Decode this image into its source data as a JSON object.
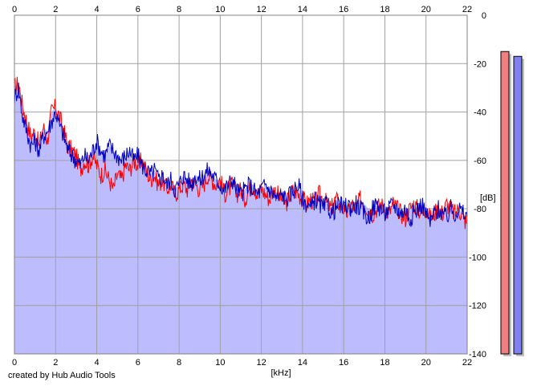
{
  "chart_data": {
    "type": "line",
    "title": "",
    "xlabel": "[kHz]",
    "ylabel": "[dB]",
    "xlim": [
      0,
      22
    ],
    "ylim": [
      -140,
      0
    ],
    "x_ticks": [
      "0",
      "2",
      "4",
      "6",
      "8",
      "10",
      "12",
      "14",
      "16",
      "18",
      "20",
      "22"
    ],
    "y_ticks": [
      "0",
      "-20",
      "-40",
      "-60",
      "-80",
      "-100",
      "-120",
      "-140"
    ],
    "grid": true,
    "fill_color": "#bcbcff",
    "series": [
      {
        "color": "#ff0000",
        "x": [
          0,
          0.2,
          0.4,
          0.6,
          0.8,
          1.0,
          1.2,
          1.4,
          1.6,
          1.8,
          2.0,
          2.2,
          2.4,
          2.6,
          2.8,
          3.0,
          3.2,
          3.4,
          3.6,
          3.8,
          4.0,
          4.2,
          4.4,
          4.6,
          4.8,
          5.0,
          5.2,
          5.4,
          5.6,
          5.8,
          6.0,
          6.2,
          6.4,
          6.6,
          6.8,
          7.0,
          7.2,
          7.4,
          7.6,
          7.8,
          8.0,
          8.2,
          8.4,
          8.6,
          8.8,
          9.0,
          9.2,
          9.4,
          9.6,
          9.8,
          10.0,
          10.2,
          10.4,
          10.6,
          10.8,
          11.0,
          11.2,
          11.4,
          11.6,
          11.8,
          12.0,
          12.2,
          12.4,
          12.6,
          12.8,
          13.0,
          13.2,
          13.4,
          13.6,
          13.8,
          14.0,
          14.2,
          14.4,
          14.6,
          14.8,
          15.0,
          15.2,
          15.4,
          15.6,
          15.8,
          16.0,
          16.2,
          16.4,
          16.6,
          16.8,
          17.0,
          17.2,
          17.4,
          17.6,
          17.8,
          18.0,
          18.2,
          18.4,
          18.6,
          18.8,
          19.0,
          19.2,
          19.4,
          19.6,
          19.8,
          20.0,
          20.2,
          20.4,
          20.6,
          20.8,
          21.0,
          21.2,
          21.4,
          21.6,
          21.8,
          22.0
        ],
        "y": [
          -30,
          -28,
          -38,
          -44,
          -50,
          -48,
          -54,
          -46,
          -52,
          -40,
          -38,
          -42,
          -48,
          -54,
          -56,
          -58,
          -64,
          -60,
          -62,
          -58,
          -62,
          -66,
          -64,
          -68,
          -72,
          -66,
          -68,
          -62,
          -64,
          -60,
          -62,
          -60,
          -64,
          -68,
          -66,
          -70,
          -68,
          -72,
          -70,
          -74,
          -72,
          -70,
          -72,
          -68,
          -70,
          -72,
          -70,
          -66,
          -68,
          -70,
          -68,
          -74,
          -72,
          -70,
          -74,
          -72,
          -76,
          -72,
          -70,
          -74,
          -72,
          -74,
          -76,
          -72,
          -74,
          -76,
          -78,
          -74,
          -72,
          -74,
          -76,
          -78,
          -76,
          -78,
          -74,
          -76,
          -78,
          -80,
          -76,
          -78,
          -80,
          -82,
          -78,
          -80,
          -76,
          -78,
          -80,
          -82,
          -80,
          -78,
          -80,
          -82,
          -78,
          -80,
          -82,
          -84,
          -80,
          -78,
          -80,
          -82,
          -80,
          -84,
          -82,
          -80,
          -82,
          -78,
          -80,
          -82,
          -80,
          -84,
          -86
        ]
      },
      {
        "color": "#0000c0",
        "x": [
          0,
          0.2,
          0.4,
          0.6,
          0.8,
          1.0,
          1.2,
          1.4,
          1.6,
          1.8,
          2.0,
          2.2,
          2.4,
          2.6,
          2.8,
          3.0,
          3.2,
          3.4,
          3.6,
          3.8,
          4.0,
          4.2,
          4.4,
          4.6,
          4.8,
          5.0,
          5.2,
          5.4,
          5.6,
          5.8,
          6.0,
          6.2,
          6.4,
          6.6,
          6.8,
          7.0,
          7.2,
          7.4,
          7.6,
          7.8,
          8.0,
          8.2,
          8.4,
          8.6,
          8.8,
          9.0,
          9.2,
          9.4,
          9.6,
          9.8,
          10.0,
          10.2,
          10.4,
          10.6,
          10.8,
          11.0,
          11.2,
          11.4,
          11.6,
          11.8,
          12.0,
          12.2,
          12.4,
          12.6,
          12.8,
          13.0,
          13.2,
          13.4,
          13.6,
          13.8,
          14.0,
          14.2,
          14.4,
          14.6,
          14.8,
          15.0,
          15.2,
          15.4,
          15.6,
          15.8,
          16.0,
          16.2,
          16.4,
          16.6,
          16.8,
          17.0,
          17.2,
          17.4,
          17.6,
          17.8,
          18.0,
          18.2,
          18.4,
          18.6,
          18.8,
          19.0,
          19.2,
          19.4,
          19.6,
          19.8,
          20.0,
          20.2,
          20.4,
          20.6,
          20.8,
          21.0,
          21.2,
          21.4,
          21.6,
          21.8,
          22.0
        ],
        "y": [
          -34,
          -30,
          -42,
          -48,
          -54,
          -52,
          -56,
          -50,
          -48,
          -44,
          -40,
          -46,
          -50,
          -56,
          -58,
          -60,
          -62,
          -58,
          -60,
          -56,
          -52,
          -56,
          -58,
          -54,
          -56,
          -58,
          -60,
          -58,
          -56,
          -60,
          -58,
          -62,
          -64,
          -66,
          -64,
          -68,
          -66,
          -70,
          -68,
          -72,
          -70,
          -66,
          -68,
          -70,
          -66,
          -68,
          -66,
          -64,
          -66,
          -68,
          -70,
          -72,
          -70,
          -68,
          -72,
          -74,
          -72,
          -70,
          -72,
          -74,
          -72,
          -70,
          -72,
          -74,
          -76,
          -74,
          -76,
          -74,
          -72,
          -70,
          -76,
          -78,
          -80,
          -76,
          -78,
          -80,
          -78,
          -82,
          -80,
          -78,
          -80,
          -78,
          -80,
          -78,
          -80,
          -82,
          -84,
          -80,
          -78,
          -80,
          -82,
          -80,
          -78,
          -80,
          -82,
          -80,
          -84,
          -82,
          -80,
          -78,
          -82,
          -86,
          -82,
          -80,
          -82,
          -84,
          -80,
          -82,
          -80,
          -82,
          -84
        ]
      }
    ],
    "level_bars": [
      {
        "color": "#f08080",
        "value": -15
      },
      {
        "color": "#8080f0",
        "value": -17
      }
    ]
  },
  "credit": "created by Hub Audio Tools"
}
